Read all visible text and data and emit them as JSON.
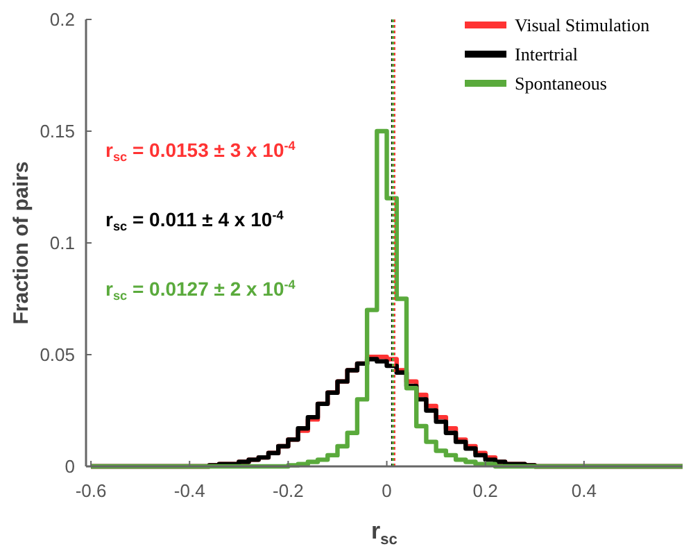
{
  "chart_data": {
    "type": "histogram",
    "xlabel": "r$_{sc}$",
    "ylabel": "Fraction of pairs",
    "bins": [
      -0.6,
      -0.58,
      -0.56,
      -0.54,
      -0.52,
      -0.5,
      -0.48,
      -0.46,
      -0.44,
      -0.42,
      -0.4,
      -0.38,
      -0.36,
      -0.34,
      -0.32,
      -0.3,
      -0.28,
      -0.26,
      -0.24,
      -0.22,
      -0.2,
      -0.18,
      -0.16,
      -0.14,
      -0.12,
      -0.1,
      -0.08,
      -0.06,
      -0.04,
      -0.02,
      0,
      0.02,
      0.04,
      0.06,
      0.08,
      0.1,
      0.12,
      0.14,
      0.16,
      0.18,
      0.2,
      0.22,
      0.24,
      0.26,
      0.28,
      0.3,
      0.32,
      0.34,
      0.36,
      0.38,
      0.4,
      0.42,
      0.44,
      0.46,
      0.48,
      0.5,
      0.52,
      0.54,
      0.56,
      0.58,
      0.6
    ],
    "series": [
      {
        "name": "Visual Stimulation",
        "color": "#ff3333",
        "values": [
          0,
          0,
          0,
          0,
          0,
          0,
          0,
          0,
          0,
          0,
          0,
          0,
          0.0005,
          0.001,
          0.001,
          0.002,
          0.003,
          0.004,
          0.006,
          0.009,
          0.012,
          0.016,
          0.021,
          0.028,
          0.033,
          0.038,
          0.043,
          0.046,
          0.049,
          0.049,
          0.048,
          0.043,
          0.038,
          0.032,
          0.027,
          0.022,
          0.017,
          0.012,
          0.009,
          0.006,
          0.004,
          0.002,
          0.001,
          0.001,
          0.0005,
          0,
          0,
          0,
          0,
          0,
          0,
          0,
          0,
          0,
          0,
          0,
          0,
          0,
          0,
          0
        ]
      },
      {
        "name": "Intertrial",
        "color": "#000000",
        "values": [
          0,
          0,
          0,
          0,
          0,
          0,
          0,
          0,
          0,
          0,
          0,
          0,
          0.0005,
          0.001,
          0.001,
          0.002,
          0.003,
          0.004,
          0.006,
          0.009,
          0.012,
          0.017,
          0.022,
          0.028,
          0.033,
          0.038,
          0.043,
          0.046,
          0.048,
          0.047,
          0.045,
          0.042,
          0.036,
          0.03,
          0.025,
          0.02,
          0.015,
          0.011,
          0.008,
          0.005,
          0.003,
          0.002,
          0.001,
          0.001,
          0.0005,
          0,
          0,
          0,
          0,
          0,
          0,
          0,
          0,
          0,
          0,
          0,
          0,
          0,
          0,
          0
        ]
      },
      {
        "name": "Spontaneous",
        "color": "#5aaa3c",
        "values": [
          0,
          0,
          0,
          0,
          0,
          0,
          0,
          0,
          0,
          0,
          0,
          0,
          0,
          0,
          0,
          0,
          0,
          0,
          0,
          0,
          0.0005,
          0.001,
          0.002,
          0.003,
          0.005,
          0.009,
          0.015,
          0.03,
          0.07,
          0.15,
          0.12,
          0.075,
          0.035,
          0.018,
          0.011,
          0.007,
          0.005,
          0.003,
          0.002,
          0.001,
          0.001,
          0,
          0,
          0,
          0,
          0,
          0,
          0,
          0,
          0,
          0,
          0,
          0,
          0,
          0,
          0,
          0,
          0,
          0,
          0
        ]
      }
    ],
    "ref_lines": [
      {
        "axis": "x",
        "value": 0.0153,
        "color": "#ff3333",
        "line_style": "dotted"
      },
      {
        "axis": "x",
        "value": 0.011,
        "color": "#000000",
        "line_style": "dotted"
      },
      {
        "axis": "x",
        "value": 0.0127,
        "color": "#5aaa3c",
        "line_style": "dotted"
      }
    ],
    "annotations": [
      "r$_{sc}$ = 0.0153 ± 3 x 10$^{-4}$",
      "r$_{sc}$ =  0.011 ± 4 x 10$^{-4}$",
      "r$_{sc}$ = 0.0127 ± 2 x 10$^{-4}$"
    ],
    "xlim": [
      -0.61,
      0.6
    ],
    "ylim": [
      0,
      0.2
    ],
    "xticks": [
      -0.6,
      -0.4,
      -0.2,
      0,
      0.2,
      0.4
    ],
    "yticks": [
      0,
      0.05,
      0.1,
      0.15,
      0.2
    ],
    "legend": "top right",
    "grid": false
  }
}
